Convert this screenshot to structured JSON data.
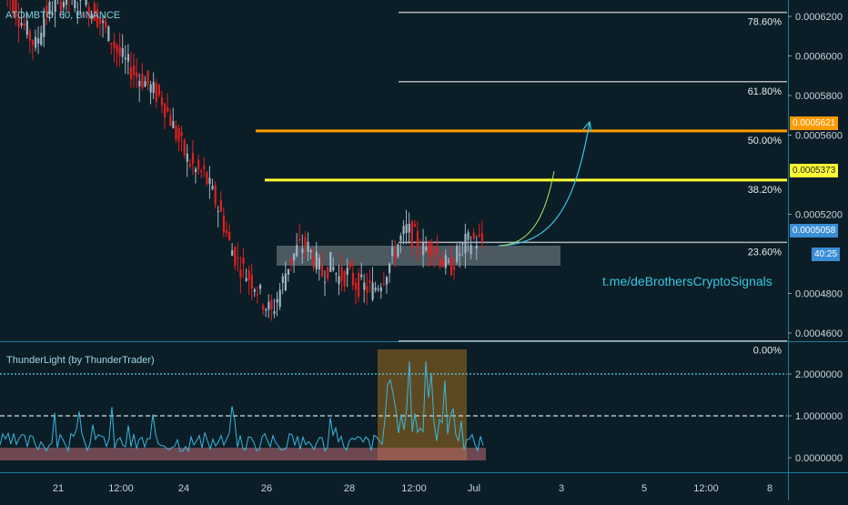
{
  "header": {
    "symbol": "ATOMBTC, 60, BINANCE"
  },
  "indicator": {
    "title": "ThunderLight (by ThunderTrader)"
  },
  "annotation": {
    "url": "t.me/deBrothersCryptoSignals"
  },
  "price_tags": {
    "orange": "0.0005621",
    "yellow": "0.0005373",
    "last": "0.0005058",
    "countdown": "40:25"
  },
  "colors": {
    "background": "#0b1d26",
    "fib": "#b0b4b8",
    "orange_level": "#ff9a00",
    "yellow_level": "#ffff33",
    "up_candle": "#9fb3c2",
    "down_candle": "#e02020",
    "indicator_line": "#36b8e0",
    "accent": "#36c8e6"
  },
  "chart_data": [
    {
      "type": "line",
      "title": "ATOMBTC, 60, BINANCE",
      "y_axis_ticks": [
        "0.0006200",
        "0.0006000",
        "0.0005800",
        "0.0005600",
        "0.0005200",
        "0.0004800",
        "0.0004600"
      ],
      "y_tick_values": [
        0.00062,
        0.0006,
        0.00058,
        0.00056,
        0.00052,
        0.00048,
        0.00046
      ],
      "x_axis_ticks": [
        "21",
        "12:00",
        "24",
        "26",
        "28",
        "12:00",
        "Jul",
        "3",
        "5",
        "12:00",
        "8"
      ],
      "fib_levels": [
        {
          "label": "78.60%",
          "value": 0.000622
        },
        {
          "label": "61.80%",
          "value": 0.000587
        },
        {
          "label": "50.00%",
          "value": 0.0005621
        },
        {
          "label": "38.20%",
          "value": 0.0005373
        },
        {
          "label": "23.60%",
          "value": 0.0005058
        },
        {
          "label": "0.00%",
          "value": 0.000456
        }
      ],
      "horizontal_levels": [
        {
          "label": "0.0005621",
          "value": 0.0005621,
          "color": "#ff9a00"
        },
        {
          "label": "0.0005373",
          "value": 0.0005373,
          "color": "#ffff33"
        }
      ],
      "last_price": 0.0005058,
      "close_path": [
        0.000635,
        0.00063,
        0.00062,
        0.000612,
        0.000605,
        0.00062,
        0.000625,
        0.000628,
        0.00063,
        0.000626,
        0.000625,
        0.000622,
        0.000615,
        0.000608,
        0.0006,
        0.000595,
        0.00059,
        0.000587,
        0.000582,
        0.000578,
        0.000568,
        0.000557,
        0.000548,
        0.000542,
        0.00054,
        0.00053,
        0.00052,
        0.000505,
        0.000496,
        0.00049,
        0.000485,
        0.000476,
        0.00047,
        0.000482,
        0.000495,
        0.000502,
        0.000505,
        0.000498,
        0.00049,
        0.000495,
        0.000488,
        0.00049,
        0.000485,
        0.000483,
        0.000482,
        0.000487,
        0.000495,
        0.000505,
        0.000512,
        0.000508,
        0.000502,
        0.000505,
        0.000498,
        0.000492,
        0.000499,
        0.000505,
        0.000507,
        0.0005058
      ]
    },
    {
      "type": "line",
      "title": "ThunderLight (by ThunderTrader)",
      "y_axis_ticks": [
        "2.0000000",
        "1.0000000",
        "0.0000000"
      ],
      "y_tick_values": [
        2,
        1,
        0
      ],
      "reference_lines": [
        2,
        1
      ]
    }
  ]
}
